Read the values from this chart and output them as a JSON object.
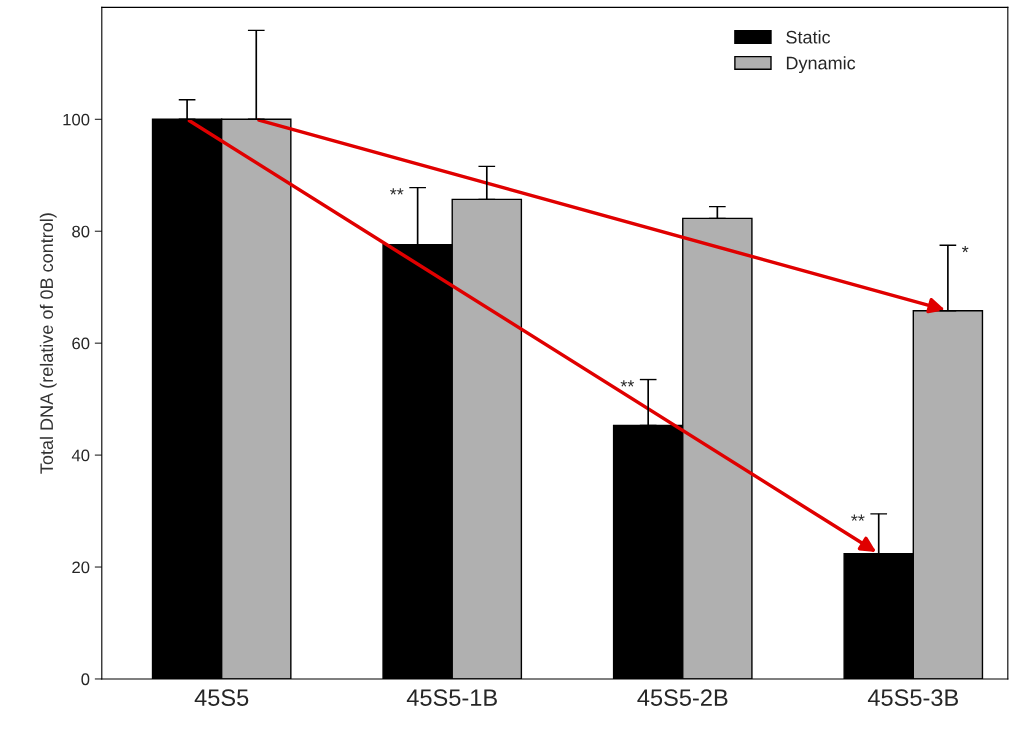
{
  "chart_data": {
    "type": "bar",
    "ylabel": "Total DNA (relative of 0B control)",
    "categories": [
      "45S5",
      "45S5-1B",
      "45S5-2B",
      "45S5-3B"
    ],
    "series": [
      {
        "name": "Static",
        "color": "#000000",
        "values": [
          100,
          77.6,
          45.3,
          22.4
        ],
        "errors": [
          [
            100,
            103.5
          ],
          [
            77.6,
            87.8
          ],
          [
            45.3,
            53.5
          ],
          [
            22.4,
            29.5
          ]
        ]
      },
      {
        "name": "Dynamic",
        "color": "#b0b0b0",
        "values": [
          100,
          85.7,
          82.3,
          65.8
        ],
        "errors": [
          [
            100,
            115.9
          ],
          [
            85.7,
            91.6
          ],
          [
            82.3,
            84.4
          ],
          [
            65.8,
            77.5
          ]
        ]
      }
    ],
    "ylim": [
      0,
      120
    ],
    "yticks": [
      0,
      20,
      40,
      60,
      80,
      100
    ],
    "annotations": [
      "**",
      "**",
      "**",
      "*"
    ],
    "legend": "top right",
    "grid": false
  }
}
